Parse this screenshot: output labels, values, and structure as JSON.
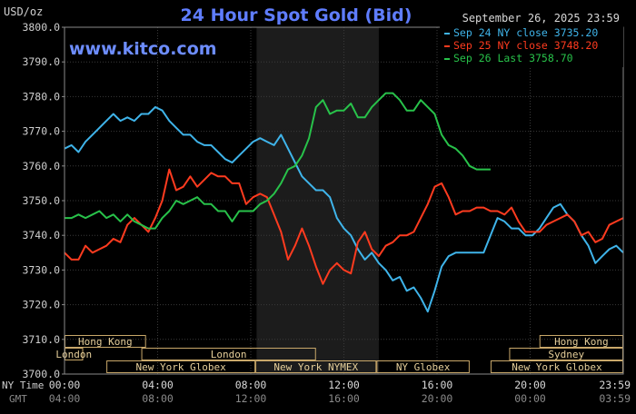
{
  "chart_data": {
    "type": "line",
    "title": "24 Hour Spot Gold (Bid)",
    "watermark": "www.kitco.com",
    "date_label": "September 26, 2025 23:59",
    "ylabel": "USD/oz",
    "ylim": [
      3700,
      3800
    ],
    "yticks": [
      "3800.0",
      "3790.0",
      "3780.0",
      "3770.0",
      "3760.0",
      "3750.0",
      "3740.0",
      "3730.0",
      "3720.0",
      "3710.0",
      "3700.0"
    ],
    "xlim": [
      0,
      24
    ],
    "ny_time_label": "NY Time",
    "gmt_label": "GMT",
    "xticks_ny": [
      "00:00",
      "04:00",
      "08:00",
      "12:00",
      "16:00",
      "20:00",
      "23:59"
    ],
    "xticks_gmt": [
      "04:00",
      "08:00",
      "12:00",
      "16:00",
      "20:00",
      "00:00",
      "03:59"
    ],
    "grid": true,
    "legend_position": "top-right",
    "shaded_band": [
      8.25,
      13.5
    ],
    "series": [
      {
        "name": "Sep 24 NY close 3735.20",
        "color": "#3fb4ea",
        "points": [
          [
            0,
            3765
          ],
          [
            0.3,
            3766
          ],
          [
            0.6,
            3764
          ],
          [
            0.9,
            3767
          ],
          [
            1.2,
            3769
          ],
          [
            1.5,
            3771
          ],
          [
            1.8,
            3773
          ],
          [
            2.1,
            3775
          ],
          [
            2.4,
            3773
          ],
          [
            2.7,
            3774
          ],
          [
            3.0,
            3773
          ],
          [
            3.3,
            3775
          ],
          [
            3.6,
            3775
          ],
          [
            3.9,
            3777
          ],
          [
            4.2,
            3776
          ],
          [
            4.5,
            3773
          ],
          [
            4.8,
            3771
          ],
          [
            5.1,
            3769
          ],
          [
            5.4,
            3769
          ],
          [
            5.7,
            3767
          ],
          [
            6.0,
            3766
          ],
          [
            6.3,
            3766
          ],
          [
            6.6,
            3764
          ],
          [
            6.9,
            3762
          ],
          [
            7.2,
            3761
          ],
          [
            7.5,
            3763
          ],
          [
            7.8,
            3765
          ],
          [
            8.1,
            3767
          ],
          [
            8.4,
            3768
          ],
          [
            8.7,
            3767
          ],
          [
            9.0,
            3766
          ],
          [
            9.3,
            3769
          ],
          [
            9.6,
            3765
          ],
          [
            9.9,
            3761
          ],
          [
            10.2,
            3757
          ],
          [
            10.5,
            3755
          ],
          [
            10.8,
            3753
          ],
          [
            11.1,
            3753
          ],
          [
            11.4,
            3751
          ],
          [
            11.7,
            3745
          ],
          [
            12.0,
            3742
          ],
          [
            12.3,
            3740
          ],
          [
            12.6,
            3736
          ],
          [
            12.9,
            3733
          ],
          [
            13.2,
            3735
          ],
          [
            13.5,
            3732
          ],
          [
            13.8,
            3730
          ],
          [
            14.1,
            3727
          ],
          [
            14.4,
            3728
          ],
          [
            14.7,
            3724
          ],
          [
            15.0,
            3725
          ],
          [
            15.3,
            3722
          ],
          [
            15.6,
            3718
          ],
          [
            15.9,
            3724
          ],
          [
            16.2,
            3731
          ],
          [
            16.5,
            3734
          ],
          [
            16.8,
            3735
          ],
          [
            17.1,
            3735
          ],
          [
            17.4,
            3735
          ],
          [
            17.7,
            3735
          ],
          [
            18.0,
            3735
          ],
          [
            18.3,
            3740
          ],
          [
            18.6,
            3745
          ],
          [
            18.9,
            3744
          ],
          [
            19.2,
            3742
          ],
          [
            19.5,
            3742
          ],
          [
            19.8,
            3740
          ],
          [
            20.1,
            3740
          ],
          [
            20.4,
            3742
          ],
          [
            20.7,
            3745
          ],
          [
            21.0,
            3748
          ],
          [
            21.3,
            3749
          ],
          [
            21.6,
            3746
          ],
          [
            21.9,
            3744
          ],
          [
            22.2,
            3740
          ],
          [
            22.5,
            3737
          ],
          [
            22.8,
            3732
          ],
          [
            23.1,
            3734
          ],
          [
            23.4,
            3736
          ],
          [
            23.7,
            3737
          ],
          [
            24,
            3735
          ]
        ]
      },
      {
        "name": "Sep 25 NY close 3748.20",
        "color": "#ff3b1f",
        "points": [
          [
            0,
            3735
          ],
          [
            0.3,
            3733
          ],
          [
            0.6,
            3733
          ],
          [
            0.9,
            3737
          ],
          [
            1.2,
            3735
          ],
          [
            1.5,
            3736
          ],
          [
            1.8,
            3737
          ],
          [
            2.1,
            3739
          ],
          [
            2.4,
            3738
          ],
          [
            2.7,
            3743
          ],
          [
            3.0,
            3745
          ],
          [
            3.3,
            3743
          ],
          [
            3.6,
            3741
          ],
          [
            3.9,
            3745
          ],
          [
            4.2,
            3750
          ],
          [
            4.5,
            3759
          ],
          [
            4.8,
            3753
          ],
          [
            5.1,
            3754
          ],
          [
            5.4,
            3757
          ],
          [
            5.7,
            3754
          ],
          [
            6.0,
            3756
          ],
          [
            6.3,
            3758
          ],
          [
            6.6,
            3757
          ],
          [
            6.9,
            3757
          ],
          [
            7.2,
            3755
          ],
          [
            7.5,
            3755
          ],
          [
            7.8,
            3749
          ],
          [
            8.1,
            3751
          ],
          [
            8.4,
            3752
          ],
          [
            8.7,
            3751
          ],
          [
            9.0,
            3746
          ],
          [
            9.3,
            3741
          ],
          [
            9.6,
            3733
          ],
          [
            9.9,
            3737
          ],
          [
            10.2,
            3742
          ],
          [
            10.5,
            3737
          ],
          [
            10.8,
            3731
          ],
          [
            11.1,
            3726
          ],
          [
            11.4,
            3730
          ],
          [
            11.7,
            3732
          ],
          [
            12.0,
            3730
          ],
          [
            12.3,
            3729
          ],
          [
            12.6,
            3738
          ],
          [
            12.9,
            3741
          ],
          [
            13.2,
            3736
          ],
          [
            13.5,
            3734
          ],
          [
            13.8,
            3737
          ],
          [
            14.1,
            3738
          ],
          [
            14.4,
            3740
          ],
          [
            14.7,
            3740
          ],
          [
            15.0,
            3741
          ],
          [
            15.3,
            3745
          ],
          [
            15.6,
            3749
          ],
          [
            15.9,
            3754
          ],
          [
            16.2,
            3755
          ],
          [
            16.5,
            3751
          ],
          [
            16.8,
            3746
          ],
          [
            17.1,
            3747
          ],
          [
            17.4,
            3747
          ],
          [
            17.7,
            3748
          ],
          [
            18.0,
            3748
          ],
          [
            18.3,
            3747
          ],
          [
            18.6,
            3747
          ],
          [
            18.9,
            3746
          ],
          [
            19.2,
            3748
          ],
          [
            19.5,
            3744
          ],
          [
            19.8,
            3741
          ],
          [
            20.1,
            3741
          ],
          [
            20.4,
            3741
          ],
          [
            20.7,
            3743
          ],
          [
            21.0,
            3744
          ],
          [
            21.3,
            3745
          ],
          [
            21.6,
            3746
          ],
          [
            21.9,
            3744
          ],
          [
            22.2,
            3740
          ],
          [
            22.5,
            3741
          ],
          [
            22.8,
            3738
          ],
          [
            23.1,
            3739
          ],
          [
            23.4,
            3743
          ],
          [
            23.7,
            3744
          ],
          [
            24,
            3745
          ]
        ]
      },
      {
        "name": "Sep 26 Last 3758.70",
        "color": "#28c24a",
        "points": [
          [
            0,
            3745
          ],
          [
            0.3,
            3745
          ],
          [
            0.6,
            3746
          ],
          [
            0.9,
            3745
          ],
          [
            1.2,
            3746
          ],
          [
            1.5,
            3747
          ],
          [
            1.8,
            3745
          ],
          [
            2.1,
            3746
          ],
          [
            2.4,
            3744
          ],
          [
            2.7,
            3746
          ],
          [
            3.0,
            3744
          ],
          [
            3.3,
            3743
          ],
          [
            3.6,
            3742
          ],
          [
            3.9,
            3742
          ],
          [
            4.2,
            3745
          ],
          [
            4.5,
            3747
          ],
          [
            4.8,
            3750
          ],
          [
            5.1,
            3749
          ],
          [
            5.4,
            3750
          ],
          [
            5.7,
            3751
          ],
          [
            6.0,
            3749
          ],
          [
            6.3,
            3749
          ],
          [
            6.6,
            3747
          ],
          [
            6.9,
            3747
          ],
          [
            7.2,
            3744
          ],
          [
            7.5,
            3747
          ],
          [
            7.8,
            3747
          ],
          [
            8.1,
            3747
          ],
          [
            8.4,
            3749
          ],
          [
            8.7,
            3750
          ],
          [
            9.0,
            3752
          ],
          [
            9.3,
            3755
          ],
          [
            9.6,
            3759
          ],
          [
            9.9,
            3760
          ],
          [
            10.2,
            3763
          ],
          [
            10.5,
            3768
          ],
          [
            10.8,
            3777
          ],
          [
            11.1,
            3779
          ],
          [
            11.4,
            3775
          ],
          [
            11.7,
            3776
          ],
          [
            12.0,
            3776
          ],
          [
            12.3,
            3778
          ],
          [
            12.6,
            3774
          ],
          [
            12.9,
            3774
          ],
          [
            13.2,
            3777
          ],
          [
            13.5,
            3779
          ],
          [
            13.8,
            3781
          ],
          [
            14.1,
            3781
          ],
          [
            14.4,
            3779
          ],
          [
            14.7,
            3776
          ],
          [
            15.0,
            3776
          ],
          [
            15.3,
            3779
          ],
          [
            15.6,
            3777
          ],
          [
            15.9,
            3775
          ],
          [
            16.2,
            3769
          ],
          [
            16.5,
            3766
          ],
          [
            16.8,
            3765
          ],
          [
            17.1,
            3763
          ],
          [
            17.4,
            3760
          ],
          [
            17.7,
            3759
          ],
          [
            18.0,
            3759
          ],
          [
            18.3,
            3759
          ]
        ]
      }
    ],
    "market_sessions": [
      {
        "label": "Hong Kong",
        "start": 0,
        "end": 3.5,
        "row": 0
      },
      {
        "label": "Hong Kong",
        "start": 20.4,
        "end": 24,
        "row": 0
      },
      {
        "label": "London",
        "start": 0,
        "end": 0.8,
        "row": 1
      },
      {
        "label": "London",
        "start": 3.3,
        "end": 10.8,
        "row": 1
      },
      {
        "label": "Sydney",
        "start": 19.1,
        "end": 24,
        "row": 1
      },
      {
        "label": "New York Globex",
        "start": 1.8,
        "end": 8.2,
        "row": 2
      },
      {
        "label": "New York NYMEX",
        "start": 8.2,
        "end": 13.4,
        "row": 2
      },
      {
        "label": "NY Globex",
        "start": 13.4,
        "end": 17.4,
        "row": 2
      },
      {
        "label": "New York Globex",
        "start": 18.3,
        "end": 24,
        "row": 2
      }
    ]
  }
}
